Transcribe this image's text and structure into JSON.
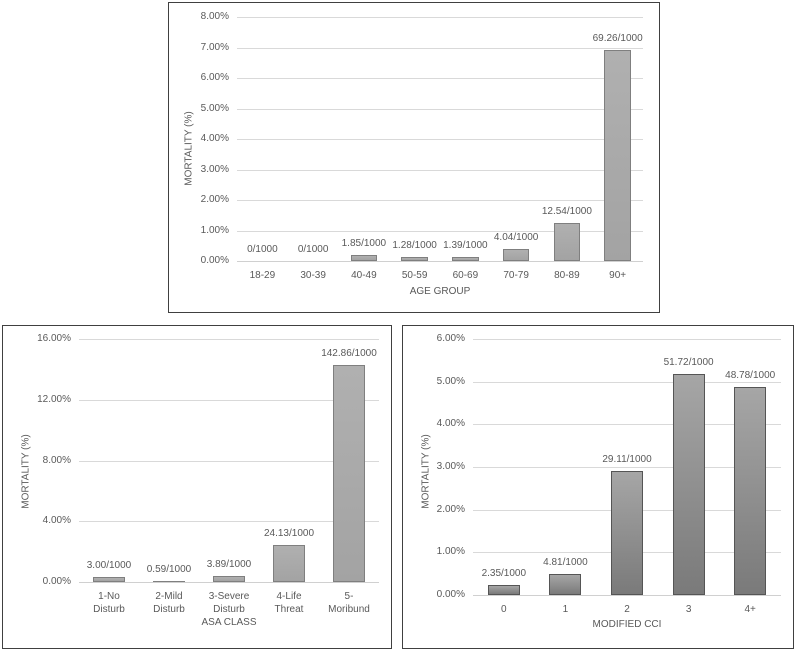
{
  "chart_data": [
    {
      "id": "age",
      "type": "bar",
      "title": "",
      "xlabel": "AGE GROUP",
      "ylabel": "MORTALITY (%)",
      "ylim": [
        0,
        8
      ],
      "yticks": [
        "0.00%",
        "1.00%",
        "2.00%",
        "3.00%",
        "4.00%",
        "5.00%",
        "6.00%",
        "7.00%",
        "8.00%"
      ],
      "grid": true,
      "categories": [
        "18-29",
        "30-39",
        "40-49",
        "50-59",
        "60-69",
        "70-79",
        "80-89",
        "90+"
      ],
      "values": [
        0,
        0,
        0.185,
        0.128,
        0.139,
        0.404,
        1.254,
        6.926
      ],
      "data_labels": [
        "0/1000",
        "0/1000",
        "1.85/1000",
        "1.28/1000",
        "1.39/1000",
        "4.04/1000",
        "12.54/1000",
        "69.26/1000"
      ]
    },
    {
      "id": "asa",
      "type": "bar",
      "title": "",
      "xlabel": "ASA CLASS",
      "ylabel": "MORTALITY (%)",
      "ylim": [
        0,
        16
      ],
      "yticks": [
        "0.00%",
        "4.00%",
        "8.00%",
        "12.00%",
        "16.00%"
      ],
      "grid": true,
      "categories": [
        "1-No Disturb",
        "2-Mild Disturb",
        "3-Severe Disturb",
        "4-Life Threat",
        "5-Moribund"
      ],
      "category_lines": [
        [
          "1-No",
          "Disturb"
        ],
        [
          "2-Mild",
          "Disturb"
        ],
        [
          "3-Severe",
          "Disturb"
        ],
        [
          "4-Life",
          "Threat"
        ],
        [
          "5-",
          "Moribund"
        ]
      ],
      "values": [
        0.3,
        0.059,
        0.389,
        2.413,
        14.286
      ],
      "data_labels": [
        "3.00/1000",
        "0.59/1000",
        "3.89/1000",
        "24.13/1000",
        "142.86/1000"
      ]
    },
    {
      "id": "cci",
      "type": "bar",
      "title": "",
      "xlabel": "MODIFIED CCI",
      "ylabel": "MORTALITY (%)",
      "ylim": [
        0,
        6
      ],
      "yticks": [
        "0.00%",
        "1.00%",
        "2.00%",
        "3.00%",
        "4.00%",
        "5.00%",
        "6.00%"
      ],
      "grid": true,
      "categories": [
        "0",
        "1",
        "2",
        "3",
        "4+"
      ],
      "values": [
        0.235,
        0.481,
        2.911,
        5.172,
        4.878
      ],
      "data_labels": [
        "2.35/1000",
        "4.81/1000",
        "29.11/1000",
        "51.72/1000",
        "48.78/1000"
      ]
    }
  ]
}
